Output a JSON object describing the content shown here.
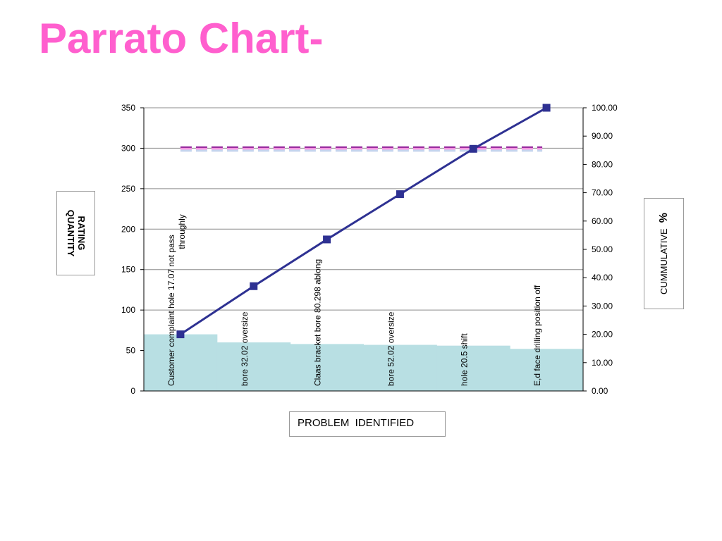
{
  "slide": {
    "title": "Parrato Chart-"
  },
  "chart_data": {
    "type": "bar",
    "categories": [
      "Customer complaint hole 17.07 not pass throughly",
      "bore 32.02 oversize",
      "Claas bracket bore 80.298 ablong",
      "bore 52.02 oversize",
      "hole 20.5 shift",
      "E,d face drilling position off"
    ],
    "category_lines": [
      [
        "Customer complaint hole 17.07 not pass",
        "throughly"
      ],
      [
        "bore 32.02 oversize"
      ],
      [
        "Claas bracket bore 80.298 ablong"
      ],
      [
        "bore 52.02 oversize"
      ],
      [
        "hole 20.5 shift"
      ],
      [
        "E,d face drilling position off"
      ]
    ],
    "series": [
      {
        "type": "bar",
        "values": [
          70,
          60,
          58,
          57,
          56,
          52
        ],
        "color": "#b8dfe3",
        "axis": "left"
      },
      {
        "type": "line",
        "values": [
          20,
          37,
          53.5,
          69.5,
          85.5,
          100
        ],
        "color": "#2e3192",
        "axis": "right",
        "marker": "square"
      },
      {
        "type": "line",
        "values": [
          301,
          301,
          301,
          301,
          301,
          301
        ],
        "color": "#9a2fa0",
        "axis": "left",
        "dashed": true
      },
      {
        "type": "line",
        "values": [
          299,
          299,
          299,
          299,
          299,
          299
        ],
        "color": "#ff9de6",
        "axis": "left",
        "dashed": true
      },
      {
        "type": "line",
        "values": [
          297,
          297,
          297,
          297,
          297,
          297
        ],
        "color": "#c5d4ee",
        "axis": "left",
        "dashed": true
      }
    ],
    "y_left": {
      "ticks": [
        "0",
        "50",
        "100",
        "150",
        "200",
        "250",
        "300",
        "350"
      ],
      "ylim": [
        0,
        350
      ]
    },
    "y_right": {
      "ticks": [
        "0.00",
        "10.00",
        "20.00",
        "30.00",
        "40.00",
        "50.00",
        "60.00",
        "70.00",
        "80.00",
        "90.00",
        "100.00"
      ],
      "ylim": [
        0,
        100
      ]
    },
    "ylabel_left": [
      "RATING",
      "QUANTITY"
    ],
    "ylabel_right": "CUMMULATIVE",
    "ylabel_right_unit": "%",
    "xlabel": "PROBLEM  IDENTIFIED",
    "grid": true
  }
}
